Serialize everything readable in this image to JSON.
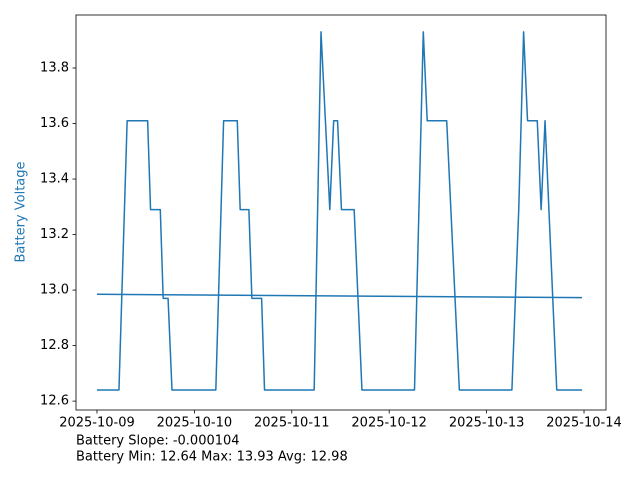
{
  "chart_data": {
    "type": "line",
    "y_label": "Battery Voltage",
    "y_label_color": "#1f77b4",
    "annotations": [
      "Battery Slope: -0.000104",
      "Battery Min: 12.64 Max: 13.93 Avg: 12.98"
    ],
    "xlim": [
      "2025-10-08 18:50",
      "2025-10-14 05:25"
    ],
    "xticks": [
      "2025-10-09",
      "2025-10-10",
      "2025-10-11",
      "2025-10-12",
      "2025-10-13",
      "2025-10-14"
    ],
    "ylim": [
      12.568,
      13.991
    ],
    "yticks": [
      12.6,
      12.8,
      {
        "value": 13,
        "label": "13.0"
      },
      13.2,
      13.4,
      13.6,
      13.8
    ],
    "grid": false,
    "series": [
      {
        "color": "#1f77b4",
        "x": [
          "2025-10-09 00:00",
          "2025-10-09 05:25",
          "2025-10-09 07:26",
          "2025-10-09 12:29",
          "2025-10-09 13:12",
          "2025-10-09 15:36",
          "2025-10-09 16:19",
          "2025-10-09 17:31",
          "2025-10-09 18:29",
          "2025-10-10 05:17",
          "2025-10-10 07:12",
          "2025-10-10 10:34",
          "2025-10-10 11:17",
          "2025-10-10 13:26",
          "2025-10-10 14:10",
          "2025-10-10 16:34",
          "2025-10-10 17:17",
          "2025-10-11 05:31",
          "2025-10-11 07:12",
          "2025-10-11 09:22",
          "2025-10-11 10:19",
          "2025-10-11 11:17",
          "2025-10-11 12:14",
          "2025-10-11 15:22",
          "2025-10-11 17:17",
          "2025-10-12 06:14",
          "2025-10-12 08:24",
          "2025-10-12 09:22",
          "2025-10-12 14:10",
          "2025-10-12 17:17",
          "2025-10-13 06:14",
          "2025-10-13 07:55",
          "2025-10-13 09:07",
          "2025-10-13 10:05",
          "2025-10-13 12:29",
          "2025-10-13 13:26",
          "2025-10-13 14:24",
          "2025-10-13 17:17",
          "2025-10-13 23:31"
        ],
        "values": [
          12.64,
          12.64,
          13.61,
          13.61,
          13.29,
          13.29,
          12.97,
          12.97,
          12.64,
          12.64,
          13.61,
          13.61,
          13.29,
          13.29,
          12.97,
          12.97,
          12.64,
          12.64,
          13.93,
          13.29,
          13.61,
          13.61,
          13.29,
          13.29,
          12.64,
          12.64,
          13.93,
          13.61,
          13.61,
          12.64,
          12.64,
          13.29,
          13.93,
          13.61,
          13.61,
          13.29,
          13.61,
          12.64,
          12.64
        ]
      },
      {
        "color": "#1f77b4",
        "x": [
          "2025-10-09 00:00",
          "2025-10-13 23:31"
        ],
        "values": [
          12.985,
          12.973
        ]
      }
    ]
  }
}
